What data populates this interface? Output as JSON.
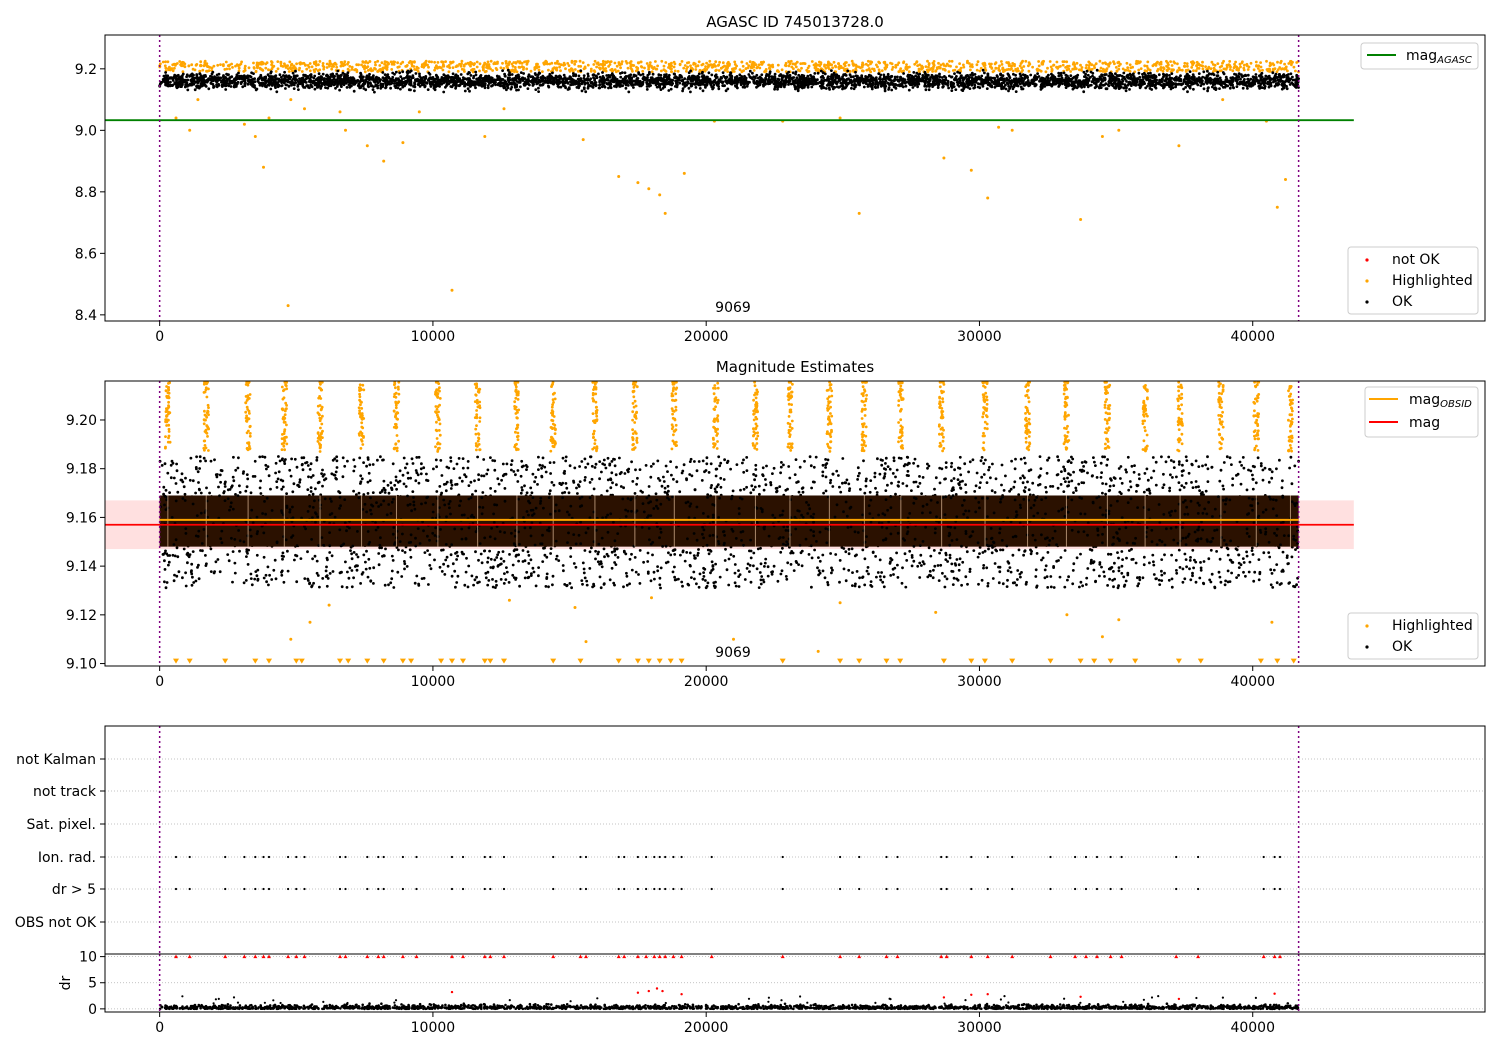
{
  "chart_data": [
    {
      "type": "scatter",
      "title": "AGASC ID 745013728.0",
      "xlim": [
        -2000,
        48500
      ],
      "ylim": [
        8.38,
        9.31
      ],
      "x_ticks": [
        0,
        10000,
        20000,
        30000,
        40000
      ],
      "y_ticks": [
        8.4,
        8.6,
        8.8,
        9.0,
        9.2
      ],
      "y_tick_labels": [
        "8.4",
        "8.6",
        "8.8",
        "9.0",
        "9.2"
      ],
      "obsid_label": "9069",
      "obs_bounds": [
        0,
        41680
      ],
      "mag_agasc": 9.033,
      "band": {
        "center": 9.16,
        "halfwidth": 0.022
      },
      "outliers": [
        [
          600,
          9.04
        ],
        [
          1100,
          9.0
        ],
        [
          1400,
          9.1
        ],
        [
          3100,
          9.02
        ],
        [
          3500,
          8.98
        ],
        [
          3800,
          8.88
        ],
        [
          4000,
          9.04
        ],
        [
          4800,
          9.1
        ],
        [
          5300,
          9.07
        ],
        [
          6600,
          9.06
        ],
        [
          6800,
          9.0
        ],
        [
          7600,
          8.95
        ],
        [
          8200,
          8.9
        ],
        [
          8900,
          8.96
        ],
        [
          9500,
          9.06
        ],
        [
          11900,
          8.98
        ],
        [
          12600,
          9.07
        ],
        [
          15500,
          8.97
        ],
        [
          16800,
          8.85
        ],
        [
          17500,
          8.83
        ],
        [
          17900,
          8.81
        ],
        [
          18300,
          8.79
        ],
        [
          18500,
          8.73
        ],
        [
          19200,
          8.86
        ],
        [
          20300,
          9.03
        ],
        [
          22800,
          9.03
        ],
        [
          24900,
          9.04
        ],
        [
          25600,
          8.73
        ],
        [
          28700,
          8.91
        ],
        [
          29700,
          8.87
        ],
        [
          30300,
          8.78
        ],
        [
          30700,
          9.01
        ],
        [
          31200,
          9.0
        ],
        [
          33700,
          8.71
        ],
        [
          34500,
          8.98
        ],
        [
          35100,
          9.0
        ],
        [
          37300,
          8.95
        ],
        [
          38900,
          9.1
        ],
        [
          40500,
          9.03
        ],
        [
          40900,
          8.75
        ],
        [
          41200,
          8.84
        ],
        [
          4700,
          8.43
        ],
        [
          10700,
          8.48
        ]
      ],
      "legend_lines": [
        {
          "label": "mag",
          "sub": "AGASC",
          "color": "#008000"
        }
      ],
      "legend_points": [
        {
          "label": "not OK",
          "color": "#ff0000"
        },
        {
          "label": "Highlighted",
          "color": "#ffa500"
        },
        {
          "label": "OK",
          "color": "#000000"
        }
      ]
    },
    {
      "type": "scatter",
      "title": "Magnitude Estimates",
      "xlim": [
        -2000,
        48500
      ],
      "ylim": [
        9.099,
        9.216
      ],
      "x_ticks": [
        0,
        10000,
        20000,
        30000,
        40000
      ],
      "y_ticks": [
        9.1,
        9.12,
        9.14,
        9.16,
        9.18,
        9.2
      ],
      "y_tick_labels": [
        "9.10",
        "9.12",
        "9.14",
        "9.16",
        "9.18",
        "9.20"
      ],
      "obsid_label": "9069",
      "obs_bounds": [
        0,
        41680
      ],
      "mag_obsid": 9.159,
      "mag": 9.157,
      "mag_band": [
        9.147,
        9.167
      ],
      "dense_band": [
        9.148,
        9.169
      ],
      "spread_band": [
        9.131,
        9.185
      ],
      "limit_markers_y": 9.1,
      "isolated": [
        [
          600,
          9.1
        ],
        [
          1100,
          9.1
        ],
        [
          2400,
          9.1
        ],
        [
          3500,
          9.1
        ],
        [
          4000,
          9.1
        ],
        [
          5000,
          9.1
        ],
        [
          5200,
          9.1
        ],
        [
          6600,
          9.1
        ],
        [
          6900,
          9.1
        ],
        [
          7600,
          9.1
        ],
        [
          8200,
          9.1
        ],
        [
          8900,
          9.1
        ],
        [
          9200,
          9.1
        ],
        [
          10300,
          9.1
        ],
        [
          10700,
          9.1
        ],
        [
          11100,
          9.1
        ],
        [
          11900,
          9.1
        ],
        [
          12100,
          9.1
        ],
        [
          12600,
          9.1
        ],
        [
          14400,
          9.1
        ],
        [
          15400,
          9.1
        ],
        [
          16800,
          9.1
        ],
        [
          17500,
          9.1
        ],
        [
          17900,
          9.1
        ],
        [
          18300,
          9.1
        ],
        [
          18700,
          9.1
        ],
        [
          19100,
          9.1
        ],
        [
          22800,
          9.1
        ],
        [
          24900,
          9.1
        ],
        [
          25600,
          9.1
        ],
        [
          26600,
          9.1
        ],
        [
          27100,
          9.1
        ],
        [
          28700,
          9.1
        ],
        [
          29700,
          9.1
        ],
        [
          30200,
          9.1
        ],
        [
          31200,
          9.1
        ],
        [
          32600,
          9.1
        ],
        [
          33700,
          9.1
        ],
        [
          34200,
          9.1
        ],
        [
          34800,
          9.1
        ],
        [
          35700,
          9.1
        ],
        [
          37300,
          9.1
        ],
        [
          38100,
          9.1
        ],
        [
          40300,
          9.1
        ],
        [
          40900,
          9.1
        ],
        [
          41500,
          9.1
        ],
        [
          4800,
          9.11
        ],
        [
          5500,
          9.117
        ],
        [
          6200,
          9.124
        ],
        [
          15600,
          9.109
        ],
        [
          21000,
          9.11
        ],
        [
          24100,
          9.105
        ],
        [
          24900,
          9.125
        ],
        [
          28400,
          9.121
        ],
        [
          33200,
          9.12
        ],
        [
          34500,
          9.111
        ],
        [
          35100,
          9.118
        ],
        [
          40700,
          9.117
        ],
        [
          15200,
          9.123
        ],
        [
          18000,
          9.127
        ],
        [
          12800,
          9.126
        ]
      ],
      "legend_lines": [
        {
          "label": "mag",
          "sub": "OBSID",
          "color": "#ffa500"
        },
        {
          "label": "mag",
          "sub": "",
          "color": "#ff0000"
        }
      ],
      "legend_points": [
        {
          "label": "Highlighted",
          "color": "#ffa500"
        },
        {
          "label": "OK",
          "color": "#000000"
        }
      ]
    },
    {
      "type": "scatter",
      "xlim": [
        -2000,
        48500
      ],
      "x_ticks": [
        0,
        10000,
        20000,
        30000,
        40000
      ],
      "obs_bounds": [
        0,
        41680
      ],
      "flag_rows": [
        "not Kalman",
        "not track",
        "Sat. pixel.",
        "Ion. rad.",
        "dr > 5",
        "OBS not OK"
      ],
      "flag_times": [
        600,
        1100,
        2400,
        3100,
        3500,
        3800,
        4000,
        4700,
        5000,
        5300,
        6600,
        6800,
        7600,
        8000,
        8200,
        8900,
        9400,
        10700,
        11100,
        11900,
        12100,
        12600,
        14400,
        15400,
        15600,
        16800,
        17000,
        17500,
        17800,
        18100,
        18300,
        18500,
        18800,
        19100,
        20200,
        22800,
        24900,
        25600,
        26600,
        27000,
        28600,
        28800,
        29700,
        30300,
        31200,
        32600,
        33500,
        33900,
        34300,
        34800,
        35200,
        37200,
        38000,
        40400,
        40800,
        41000
      ],
      "dr_ylim": [
        -0.6,
        10.5
      ],
      "dr_ticks": [
        0,
        5,
        10
      ],
      "dr_label": "dr",
      "dr_clipped_value": 10,
      "dr_mid": [
        [
          10700,
          3.2
        ],
        [
          17500,
          3.1
        ],
        [
          17900,
          3.4
        ],
        [
          18200,
          3.9
        ],
        [
          18400,
          3.4
        ],
        [
          19100,
          2.8
        ],
        [
          28700,
          2.2
        ],
        [
          29700,
          2.7
        ],
        [
          30300,
          2.8
        ],
        [
          33700,
          2.3
        ],
        [
          37300,
          1.9
        ],
        [
          40800,
          2.9
        ]
      ]
    }
  ]
}
